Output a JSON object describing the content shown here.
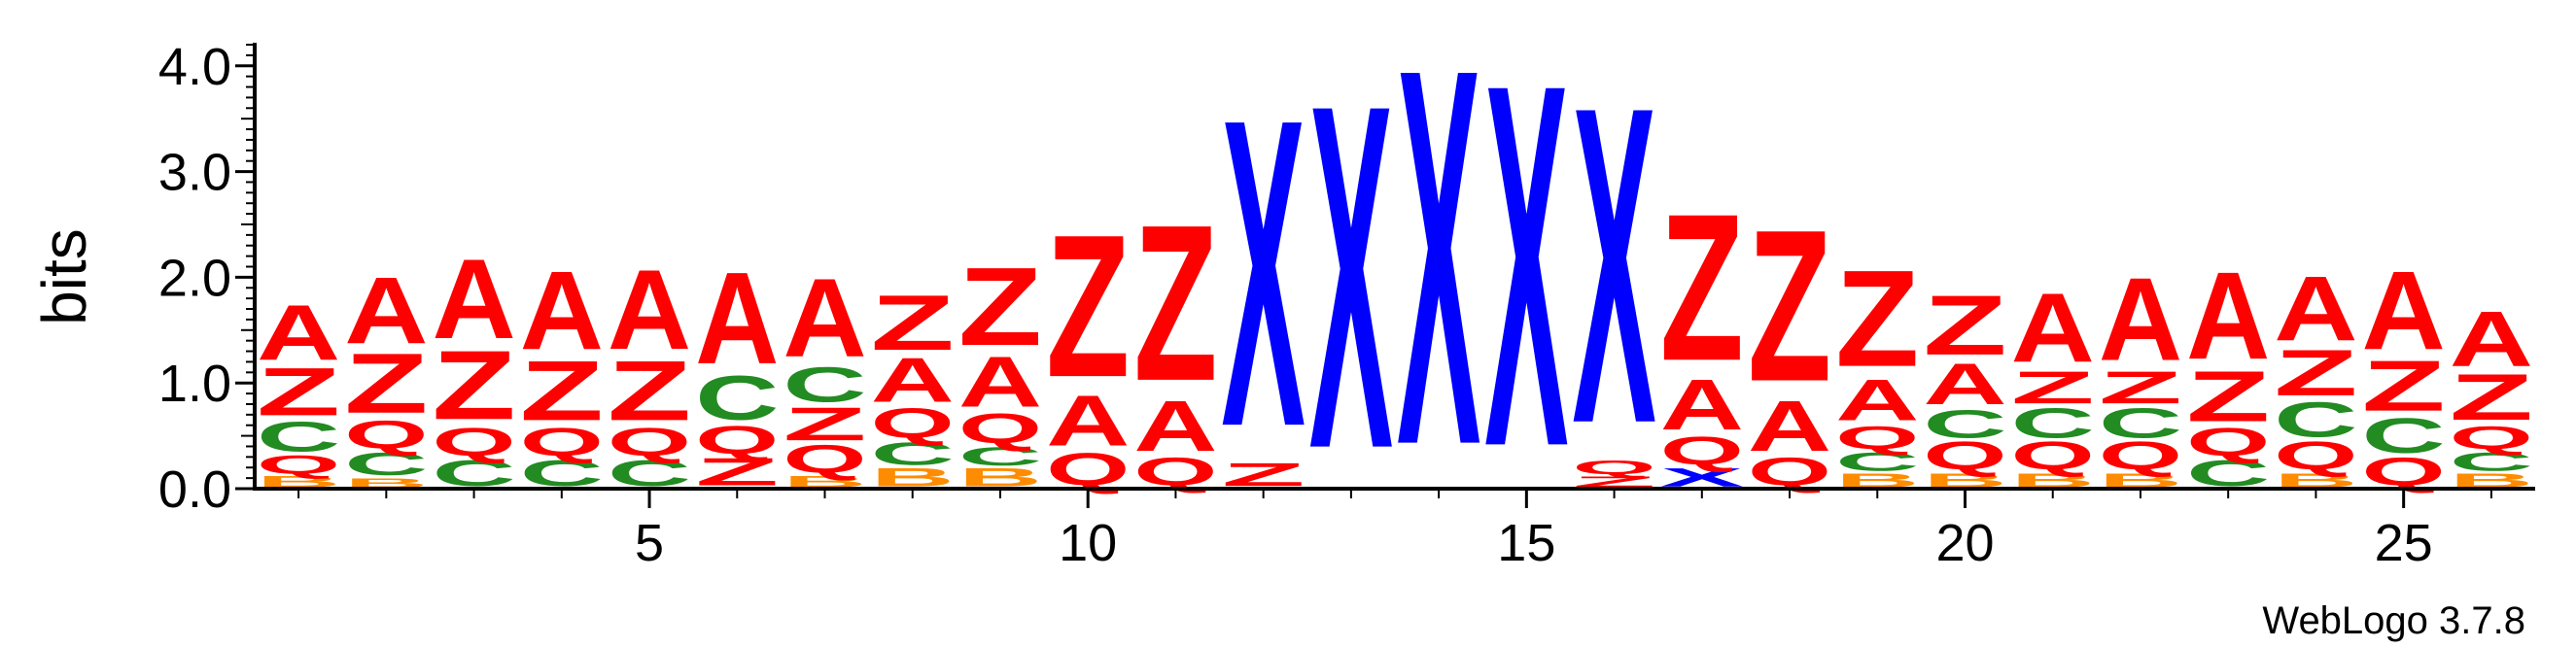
{
  "chart_data": {
    "type": "sequence-logo",
    "ylabel": "bits",
    "ylim": [
      0,
      4.2
    ],
    "y_ticks": [
      "0.0",
      "1.0",
      "2.0",
      "3.0",
      "4.0"
    ],
    "y_tick_values": [
      0,
      1,
      2,
      3,
      4
    ],
    "x_ticks": [
      "5",
      "10",
      "15",
      "20",
      "25"
    ],
    "x_tick_values": [
      5,
      10,
      15,
      20,
      25
    ],
    "x_range": [
      0.5,
      26.5
    ],
    "colors": {
      "A": "#ff0000",
      "Z": "#ff0000",
      "Q": "#ff0000",
      "X": "#0000ff",
      "C": "#228b22",
      "B": "#ff8c00"
    },
    "positions": [
      {
        "pos": 1,
        "stack": [
          {
            "letter": "B",
            "h": 0.12
          },
          {
            "letter": "Q",
            "h": 0.2
          },
          {
            "letter": "C",
            "h": 0.32
          },
          {
            "letter": "Z",
            "h": 0.52
          },
          {
            "letter": "A",
            "h": 0.6
          }
        ]
      },
      {
        "pos": 2,
        "stack": [
          {
            "letter": "B",
            "h": 0.1
          },
          {
            "letter": "C",
            "h": 0.25
          },
          {
            "letter": "Q",
            "h": 0.3
          },
          {
            "letter": "Z",
            "h": 0.65
          },
          {
            "letter": "A",
            "h": 0.72
          }
        ]
      },
      {
        "pos": 3,
        "stack": [
          {
            "letter": "C",
            "h": 0.28
          },
          {
            "letter": "Q",
            "h": 0.3
          },
          {
            "letter": "Z",
            "h": 0.75
          },
          {
            "letter": "A",
            "h": 0.87
          }
        ]
      },
      {
        "pos": 4,
        "stack": [
          {
            "letter": "C",
            "h": 0.28
          },
          {
            "letter": "Q",
            "h": 0.3
          },
          {
            "letter": "Z",
            "h": 0.65
          },
          {
            "letter": "A",
            "h": 0.85
          }
        ]
      },
      {
        "pos": 5,
        "stack": [
          {
            "letter": "C",
            "h": 0.28
          },
          {
            "letter": "Q",
            "h": 0.3
          },
          {
            "letter": "Z",
            "h": 0.65
          },
          {
            "letter": "A",
            "h": 0.87
          }
        ]
      },
      {
        "pos": 6,
        "stack": [
          {
            "letter": "Z",
            "h": 0.3
          },
          {
            "letter": "Q",
            "h": 0.3
          },
          {
            "letter": "C",
            "h": 0.48
          },
          {
            "letter": "A",
            "h": 1.0
          }
        ]
      },
      {
        "pos": 7,
        "stack": [
          {
            "letter": "B",
            "h": 0.12
          },
          {
            "letter": "Q",
            "h": 0.3
          },
          {
            "letter": "Z",
            "h": 0.36
          },
          {
            "letter": "C",
            "h": 0.38
          },
          {
            "letter": "A",
            "h": 0.85
          }
        ]
      },
      {
        "pos": 8,
        "stack": [
          {
            "letter": "B",
            "h": 0.2
          },
          {
            "letter": "C",
            "h": 0.25
          },
          {
            "letter": "Q",
            "h": 0.32
          },
          {
            "letter": "A",
            "h": 0.48
          },
          {
            "letter": "Z",
            "h": 0.6
          }
        ]
      },
      {
        "pos": 9,
        "stack": [
          {
            "letter": "B",
            "h": 0.2
          },
          {
            "letter": "C",
            "h": 0.2
          },
          {
            "letter": "Q",
            "h": 0.32
          },
          {
            "letter": "A",
            "h": 0.55
          },
          {
            "letter": "Z",
            "h": 0.85
          }
        ]
      },
      {
        "pos": 10,
        "stack": [
          {
            "letter": "Q",
            "h": 0.35
          },
          {
            "letter": "A",
            "h": 0.55
          },
          {
            "letter": "Z",
            "h": 1.55
          }
        ]
      },
      {
        "pos": 11,
        "stack": [
          {
            "letter": "Q",
            "h": 0.3
          },
          {
            "letter": "A",
            "h": 0.55
          },
          {
            "letter": "Z",
            "h": 1.7
          }
        ]
      },
      {
        "pos": 12,
        "stack": [
          {
            "letter": "Z",
            "h": 0.25
          },
          {
            "letter": "X",
            "h": 3.35
          }
        ]
      },
      {
        "pos": 13,
        "stack": [
          {
            "letter": "X",
            "h": 3.75
          }
        ]
      },
      {
        "pos": 14,
        "stack": [
          {
            "letter": "X",
            "h": 4.1
          }
        ]
      },
      {
        "pos": 15,
        "stack": [
          {
            "letter": "X",
            "h": 3.95
          }
        ]
      },
      {
        "pos": 16,
        "stack": [
          {
            "letter": "Z",
            "h": 0.12
          },
          {
            "letter": "Q",
            "h": 0.15
          },
          {
            "letter": "X",
            "h": 3.45
          }
        ]
      },
      {
        "pos": 17,
        "stack": [
          {
            "letter": "X",
            "h": 0.2
          },
          {
            "letter": "Q",
            "h": 0.3
          },
          {
            "letter": "A",
            "h": 0.55
          },
          {
            "letter": "Z",
            "h": 1.6
          }
        ]
      },
      {
        "pos": 18,
        "stack": [
          {
            "letter": "Q",
            "h": 0.3
          },
          {
            "letter": "A",
            "h": 0.55
          },
          {
            "letter": "Z",
            "h": 1.65
          }
        ]
      },
      {
        "pos": 19,
        "stack": [
          {
            "letter": "B",
            "h": 0.15
          },
          {
            "letter": "C",
            "h": 0.2
          },
          {
            "letter": "Q",
            "h": 0.25
          },
          {
            "letter": "A",
            "h": 0.45
          },
          {
            "letter": "Z",
            "h": 1.05
          }
        ]
      },
      {
        "pos": 20,
        "stack": [
          {
            "letter": "B",
            "h": 0.15
          },
          {
            "letter": "Q",
            "h": 0.3
          },
          {
            "letter": "C",
            "h": 0.3
          },
          {
            "letter": "A",
            "h": 0.45
          },
          {
            "letter": "Z",
            "h": 0.65
          }
        ]
      },
      {
        "pos": 21,
        "stack": [
          {
            "letter": "B",
            "h": 0.15
          },
          {
            "letter": "Q",
            "h": 0.3
          },
          {
            "letter": "C",
            "h": 0.32
          },
          {
            "letter": "Z",
            "h": 0.35
          },
          {
            "letter": "A",
            "h": 0.75
          }
        ]
      },
      {
        "pos": 22,
        "stack": [
          {
            "letter": "B",
            "h": 0.15
          },
          {
            "letter": "Q",
            "h": 0.3
          },
          {
            "letter": "C",
            "h": 0.32
          },
          {
            "letter": "Z",
            "h": 0.35
          },
          {
            "letter": "A",
            "h": 0.9
          }
        ]
      },
      {
        "pos": 23,
        "stack": [
          {
            "letter": "C",
            "h": 0.28
          },
          {
            "letter": "Q",
            "h": 0.3
          },
          {
            "letter": "Z",
            "h": 0.55
          },
          {
            "letter": "A",
            "h": 0.95
          }
        ]
      },
      {
        "pos": 24,
        "stack": [
          {
            "letter": "B",
            "h": 0.15
          },
          {
            "letter": "Q",
            "h": 0.3
          },
          {
            "letter": "C",
            "h": 0.38
          },
          {
            "letter": "Z",
            "h": 0.5
          },
          {
            "letter": "A",
            "h": 0.7
          }
        ]
      },
      {
        "pos": 25,
        "stack": [
          {
            "letter": "Q",
            "h": 0.3
          },
          {
            "letter": "C",
            "h": 0.38
          },
          {
            "letter": "Z",
            "h": 0.55
          },
          {
            "letter": "A",
            "h": 0.85
          }
        ]
      },
      {
        "pos": 26,
        "stack": [
          {
            "letter": "B",
            "h": 0.15
          },
          {
            "letter": "C",
            "h": 0.2
          },
          {
            "letter": "Q",
            "h": 0.25
          },
          {
            "letter": "Z",
            "h": 0.5
          },
          {
            "letter": "A",
            "h": 0.6
          }
        ]
      }
    ]
  },
  "footer": {
    "credit": "WebLogo 3.7.8"
  }
}
